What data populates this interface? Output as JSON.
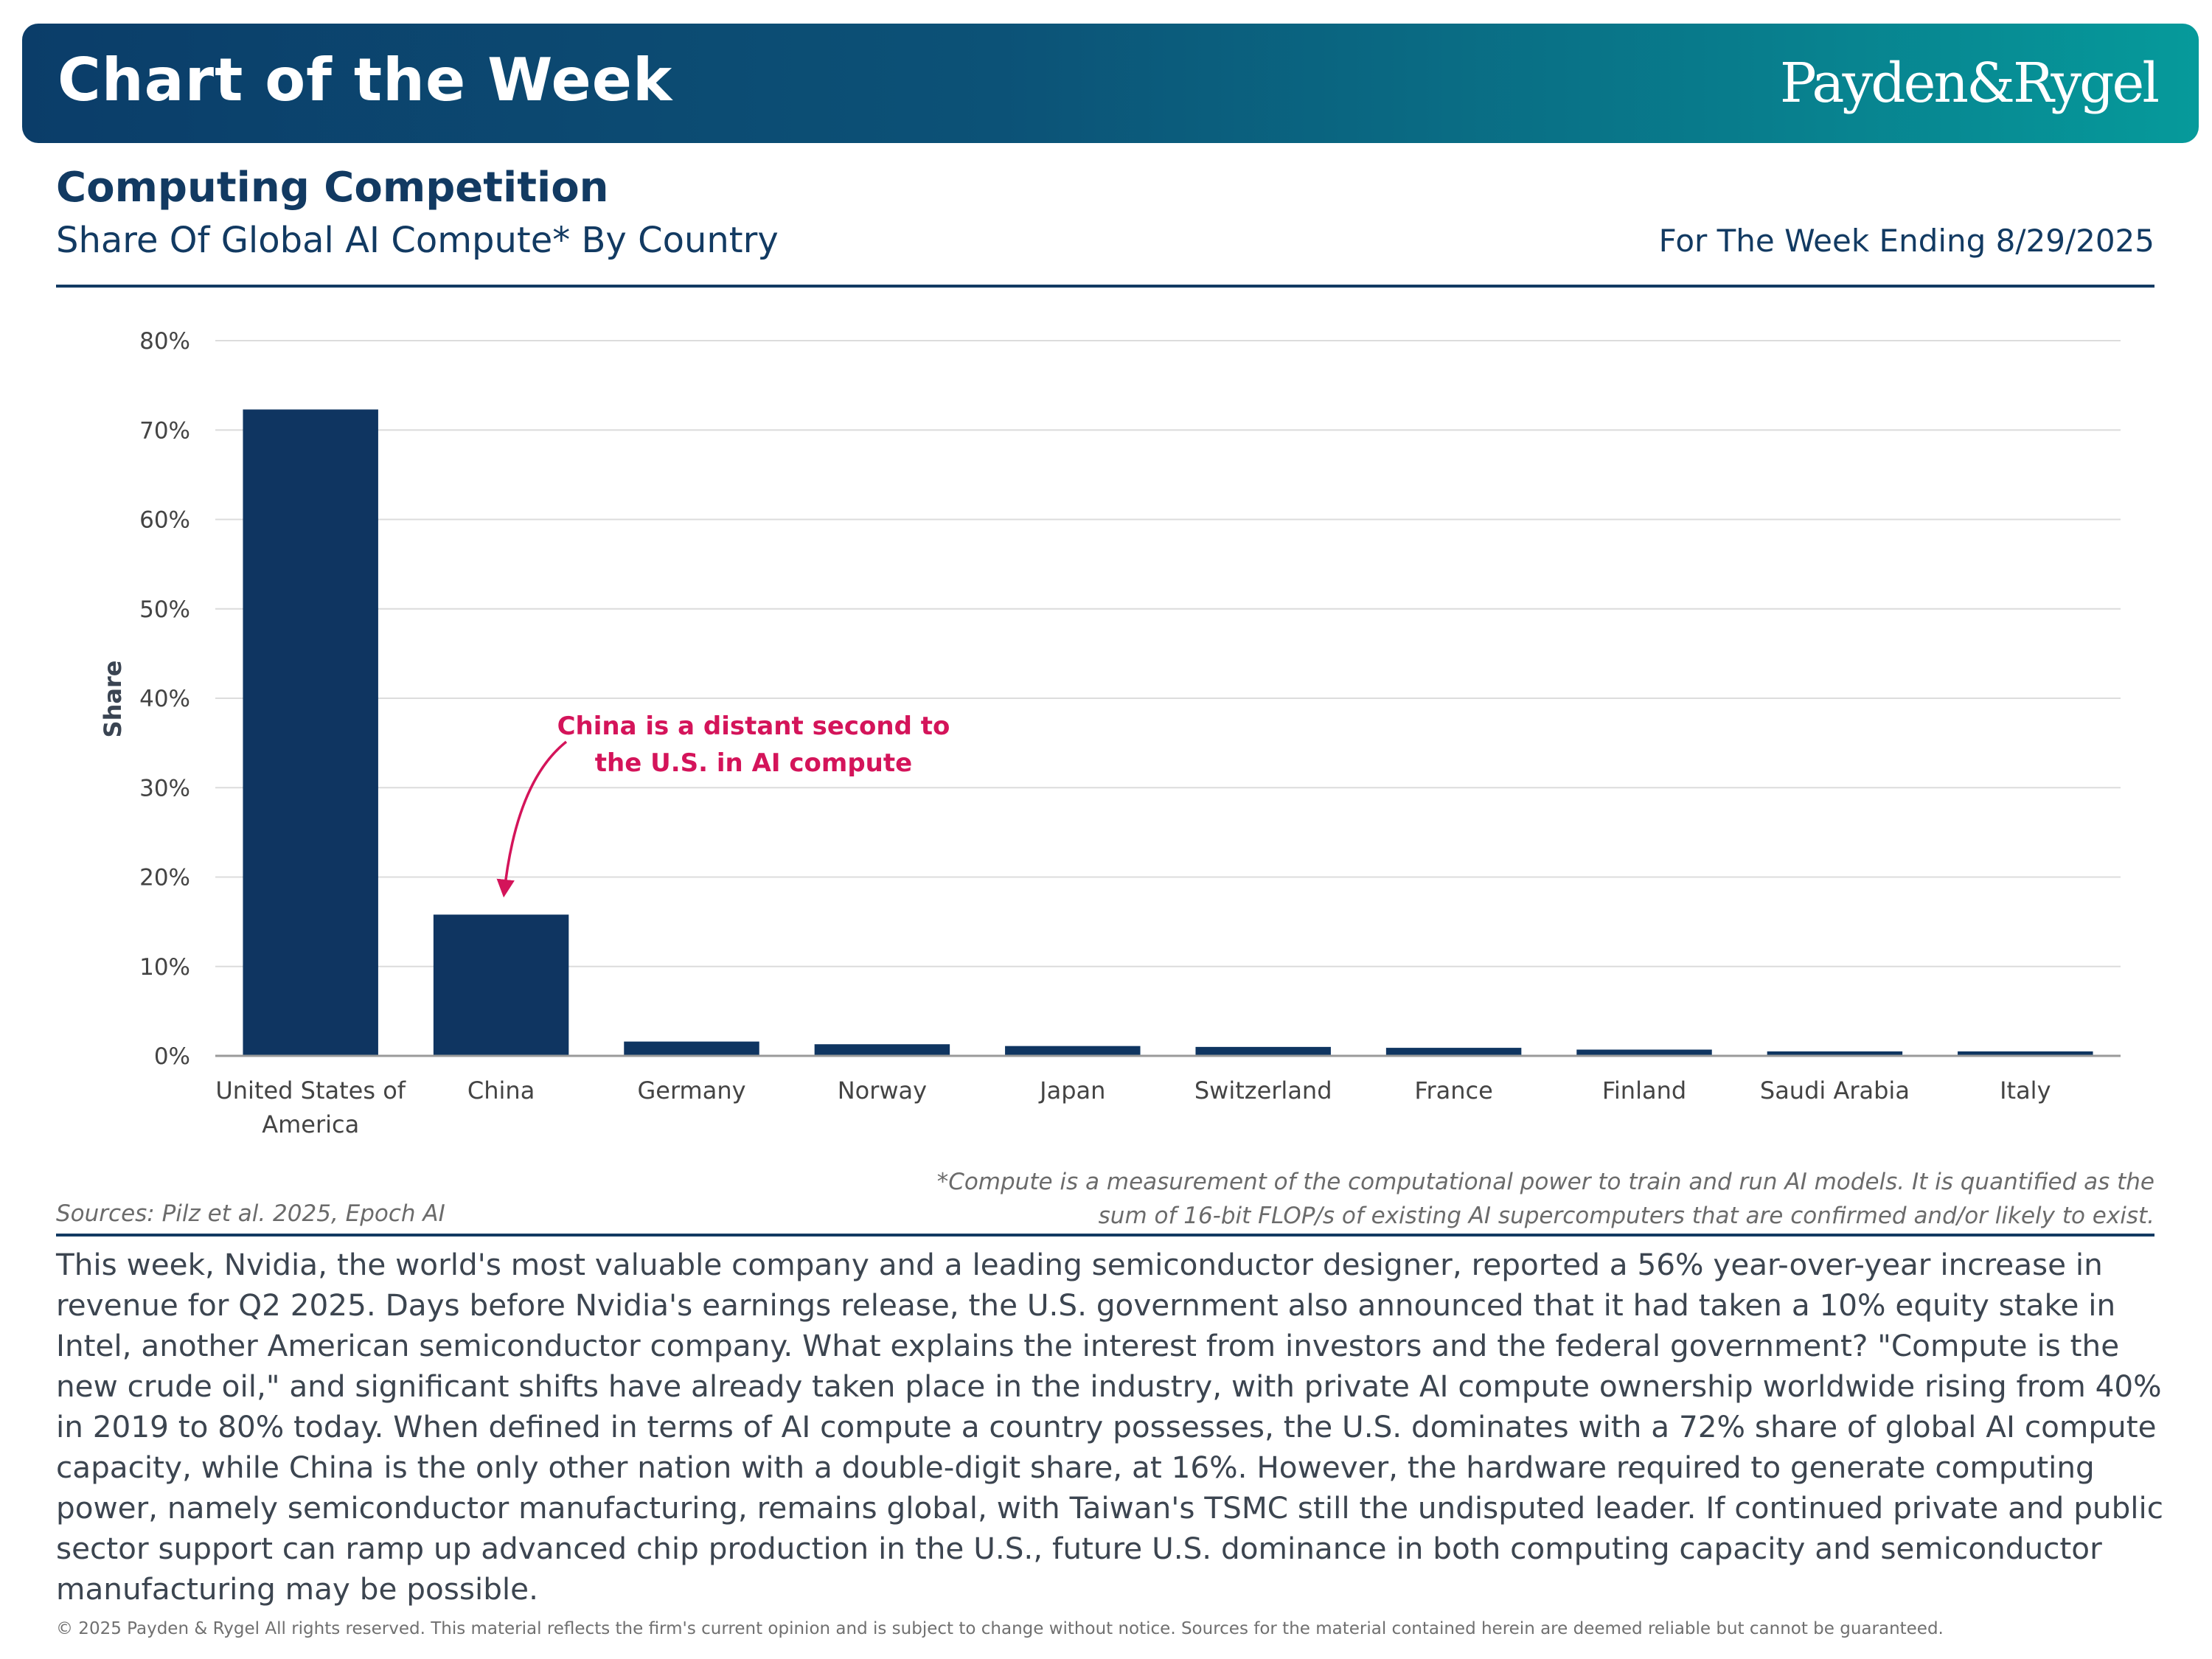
{
  "banner": {
    "title": "Chart of the Week",
    "logo": "Payden&Rygel"
  },
  "header": {
    "title": "Computing Competition",
    "subtitle": "Share Of Global AI Compute* By Country",
    "week_ending": "For The Week Ending 8/29/2025"
  },
  "chart_data": {
    "type": "bar",
    "title": "",
    "xlabel": "",
    "ylabel": "Share",
    "ylim": [
      0,
      80
    ],
    "yticks": [
      "0%",
      "10%",
      "20%",
      "30%",
      "40%",
      "50%",
      "60%",
      "70%",
      "80%"
    ],
    "categories": [
      [
        "United States of",
        "America"
      ],
      [
        "China"
      ],
      [
        "Germany"
      ],
      [
        "Norway"
      ],
      [
        "Japan"
      ],
      [
        "Switzerland"
      ],
      [
        "France"
      ],
      [
        "Finland"
      ],
      [
        "Saudi Arabia"
      ],
      [
        "Italy"
      ]
    ],
    "values": [
      72.3,
      15.8,
      1.6,
      1.3,
      1.1,
      1.0,
      0.9,
      0.7,
      0.5,
      0.5
    ],
    "bar_color": "#0f3561",
    "grid": true,
    "annotation": {
      "lines": [
        "China is a distant second to",
        "the U.S. in AI compute"
      ],
      "color": "#d4145a",
      "target_category": "China"
    }
  },
  "notes": {
    "sources": "Sources: Pilz et al. 2025, Epoch AI",
    "footnote": "*Compute is a measurement of the computational power to train and run AI models. It is quantified as the sum of 16-bit FLOP/s of existing AI supercomputers that are confirmed and/or likely to exist."
  },
  "commentary": "This week, Nvidia, the world's most valuable company and a leading semiconductor designer, reported a 56% year-over-year increase in revenue for Q2 2025. Days before Nvidia's earnings release, the U.S. government also announced that it had taken a 10% equity stake in Intel, another American semiconductor company. What explains the interest from investors and the federal government? \"Compute is the new crude oil,\" and significant shifts have already taken place in the industry, with private AI compute ownership worldwide rising from 40% in 2019 to 80% today. When defined in terms of AI compute a country possesses, the U.S. dominates with a 72% share of global AI compute capacity, while China is the only other nation with a double-digit share, at 16%. However, the hardware required to generate computing power, namely semiconductor manufacturing, remains global, with Taiwan's TSMC still the undisputed leader. If continued private and public sector support can ramp up advanced chip production in the U.S., future U.S. dominance in both computing capacity and semiconductor manufacturing may be possible.",
  "copyright": "© 2025 Payden & Rygel All rights reserved. This material reflects the firm's current opinion and is subject to change without notice. Sources for the material contained herein are deemed reliable but cannot be guaranteed."
}
